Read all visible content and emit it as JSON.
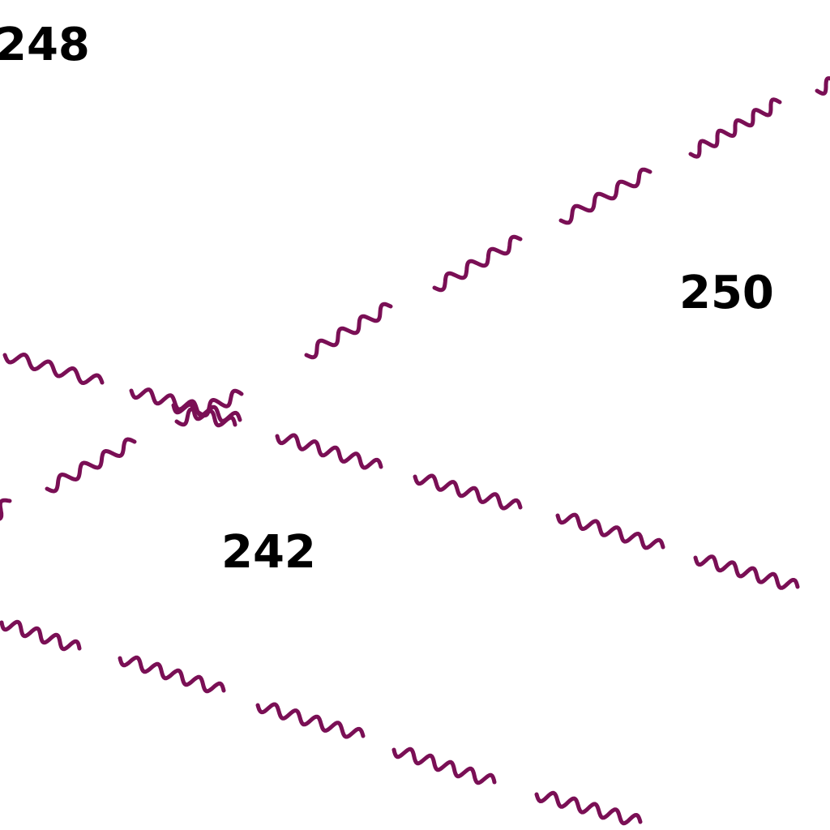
{
  "labels": {
    "contour_248": "248",
    "contour_250": "250",
    "contour_242": "242"
  },
  "colors": {
    "boundary": "#7a0f55",
    "label": "#000000",
    "background": "#ffffff"
  },
  "symbols": {
    "boundary_line_style": "wavy"
  }
}
